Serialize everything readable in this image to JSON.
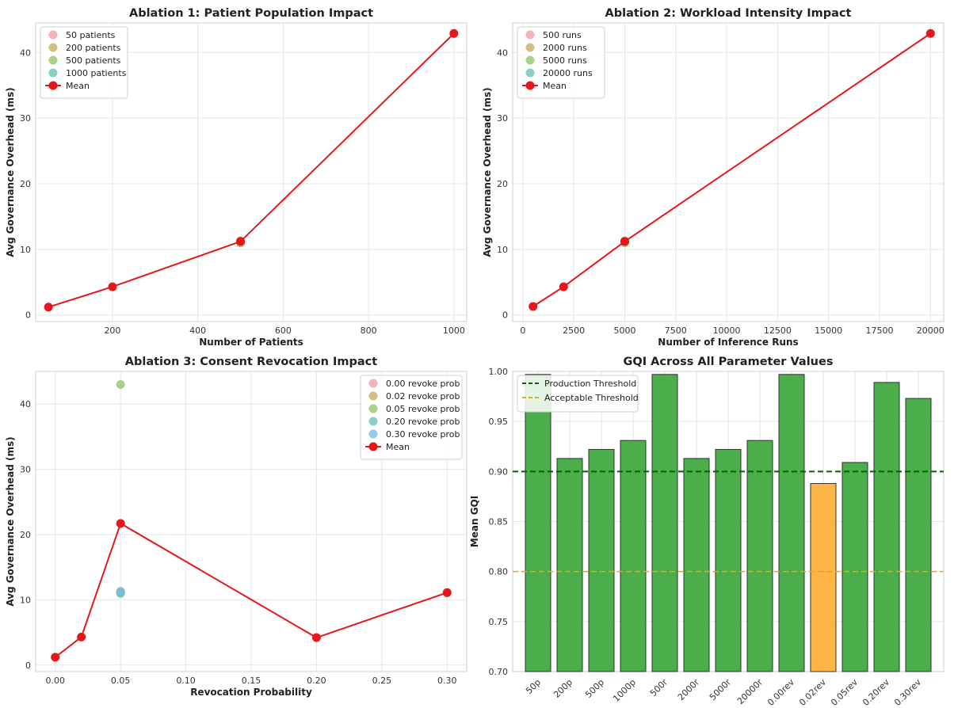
{
  "chart_data": [
    {
      "type": "scatter",
      "title": "Ablation 1: Patient Population Impact",
      "xlabel": "Number of Patients",
      "ylabel": "Avg Governance Overhead (ms)",
      "xlim": [
        20,
        1030
      ],
      "ylim": [
        -1,
        44.5
      ],
      "xticks": [
        200,
        400,
        600,
        800,
        1000
      ],
      "yticks": [
        0,
        10,
        20,
        30,
        40
      ],
      "grid": true,
      "legend_position": "top-left",
      "series": [
        {
          "name": "50 patients",
          "color": "#f2a0ae",
          "points": [
            [
              500,
              11.1
            ],
            [
              500,
              11.3
            ],
            [
              500,
              11.0
            ]
          ]
        },
        {
          "name": "200 patients",
          "color": "#c9ad62",
          "points": [
            [
              500,
              11.2
            ],
            [
              500,
              11.0
            ]
          ]
        },
        {
          "name": "500 patients",
          "color": "#8fc86a",
          "points": [
            [
              500,
              11.1
            ],
            [
              500,
              11.3
            ]
          ]
        },
        {
          "name": "1000 patients",
          "color": "#6cc3b5",
          "points": [
            [
              500,
              11.2
            ]
          ]
        }
      ],
      "mean": {
        "name": "Mean",
        "color": "#e8161b",
        "points": [
          [
            50,
            1.2
          ],
          [
            200,
            4.3
          ],
          [
            500,
            11.2
          ],
          [
            1000,
            42.9
          ]
        ]
      }
    },
    {
      "type": "scatter",
      "title": "Ablation 2: Workload Intensity Impact",
      "xlabel": "Number of Inference Runs",
      "ylabel": "Avg Governance Overhead (ms)",
      "xlim": [
        -500,
        20650
      ],
      "ylim": [
        -1,
        44.5
      ],
      "xticks": [
        0,
        2500,
        5000,
        7500,
        10000,
        12500,
        15000,
        17500,
        20000
      ],
      "yticks": [
        0,
        10,
        20,
        30,
        40
      ],
      "grid": true,
      "legend_position": "top-left",
      "series": [
        {
          "name": "500 runs",
          "color": "#f2a0ae",
          "points": [
            [
              5000,
              11.1
            ],
            [
              5000,
              11.3
            ]
          ]
        },
        {
          "name": "2000 runs",
          "color": "#c9ad62",
          "points": [
            [
              5000,
              11.0
            ],
            [
              5000,
              11.2
            ]
          ]
        },
        {
          "name": "5000 runs",
          "color": "#8fc86a",
          "points": [
            [
              5000,
              11.1
            ],
            [
              5000,
              11.3
            ]
          ]
        },
        {
          "name": "20000 runs",
          "color": "#6cc3b5",
          "points": [
            [
              5000,
              11.2
            ]
          ]
        }
      ],
      "mean": {
        "name": "Mean",
        "color": "#e8161b",
        "points": [
          [
            500,
            1.3
          ],
          [
            2000,
            4.3
          ],
          [
            5000,
            11.2
          ],
          [
            20000,
            42.9
          ]
        ]
      }
    },
    {
      "type": "scatter",
      "title": "Ablation 3: Consent Revocation Impact",
      "xlabel": "Revocation Probability",
      "ylabel": "Avg Governance Overhead (ms)",
      "xlim": [
        -0.015,
        0.315
      ],
      "ylim": [
        -1,
        45
      ],
      "xticks": [
        0.0,
        0.05,
        0.1,
        0.15,
        0.2,
        0.25,
        0.3
      ],
      "xtick_labels": [
        "0.00",
        "0.05",
        "0.10",
        "0.15",
        "0.20",
        "0.25",
        "0.30"
      ],
      "yticks": [
        0,
        10,
        20,
        30,
        40
      ],
      "grid": true,
      "legend_position": "top-right",
      "series": [
        {
          "name": "0.00 revoke prob",
          "color": "#f2a0ae",
          "points": [
            [
              0.05,
              11.0
            ]
          ]
        },
        {
          "name": "0.02 revoke prob",
          "color": "#c9ad62",
          "points": [
            [
              0.05,
              11.2
            ]
          ]
        },
        {
          "name": "0.05 revoke prob",
          "color": "#8fc86a",
          "points": [
            [
              0.05,
              43.0
            ],
            [
              0.05,
              11.3
            ],
            [
              0.05,
              11.0
            ]
          ]
        },
        {
          "name": "0.20 revoke prob",
          "color": "#6cc3b5",
          "points": [
            [
              0.05,
              11.1
            ]
          ]
        },
        {
          "name": "0.30 revoke prob",
          "color": "#7bbde6",
          "points": [
            [
              0.05,
              11.2
            ]
          ]
        }
      ],
      "mean": {
        "name": "Mean",
        "color": "#e8161b",
        "points": [
          [
            0.0,
            1.2
          ],
          [
            0.02,
            4.3
          ],
          [
            0.05,
            21.7
          ],
          [
            0.2,
            4.2
          ],
          [
            0.3,
            11.1
          ]
        ]
      }
    },
    {
      "type": "bar",
      "title": "GQI Across All Parameter Values",
      "xlabel": "",
      "ylabel": "Mean GQI",
      "ylim": [
        0.7,
        1.0
      ],
      "yticks": [
        0.7,
        0.75,
        0.8,
        0.85,
        0.9,
        0.95,
        1.0
      ],
      "ytick_labels": [
        "0.70",
        "0.75",
        "0.80",
        "0.85",
        "0.90",
        "0.95",
        "1.00"
      ],
      "grid": true,
      "legend_position": "top-left",
      "categories": [
        "50p",
        "200p",
        "500p",
        "1000p",
        "500r",
        "2000r",
        "5000r",
        "20000r",
        "0.00rev",
        "0.02rev",
        "0.05rev",
        "0.20rev",
        "0.30rev"
      ],
      "values": [
        0.997,
        0.913,
        0.922,
        0.931,
        0.997,
        0.913,
        0.922,
        0.931,
        0.997,
        0.888,
        0.909,
        0.989,
        0.973
      ],
      "bar_colors": [
        "#2ca02c",
        "#2ca02c",
        "#2ca02c",
        "#2ca02c",
        "#2ca02c",
        "#2ca02c",
        "#2ca02c",
        "#2ca02c",
        "#2ca02c",
        "#ffa726",
        "#2ca02c",
        "#2ca02c",
        "#2ca02c"
      ],
      "thresholds": [
        {
          "name": "Production Threshold",
          "value": 0.9,
          "color": "#006400"
        },
        {
          "name": "Acceptable Threshold",
          "value": 0.8,
          "color": "#f0a30a"
        }
      ]
    }
  ]
}
